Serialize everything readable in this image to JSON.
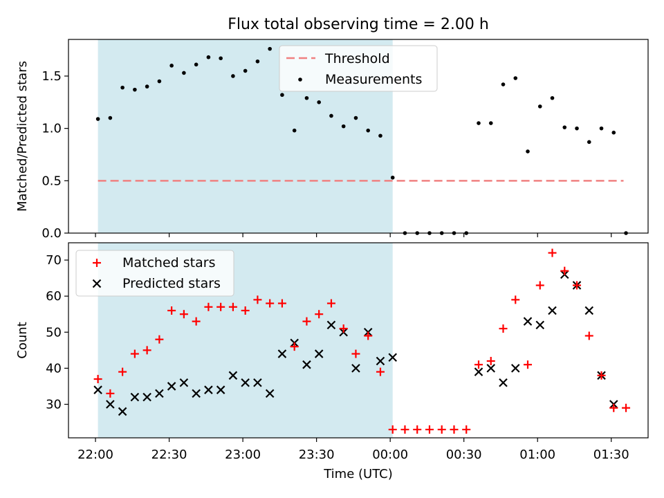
{
  "figure_title": "Flux total observing time = 2.00 h",
  "colors": {
    "shade": "#d3eaf0",
    "threshold": "#f08080",
    "matched": "#ff0000",
    "predicted": "#000000",
    "measurement": "#000000"
  },
  "chart_data": [
    {
      "type": "scatter",
      "title": "Flux total observing time = 2.00 h",
      "xlabel": "",
      "ylabel": "Matched/Predicted stars",
      "xlim": [
        "21:49",
        "01:45"
      ],
      "ylim": [
        0,
        1.85
      ],
      "yticks": [
        0.0,
        0.5,
        1.0,
        1.5
      ],
      "ytick_labels": [
        "0.0",
        "0.5",
        "1.0",
        "1.5"
      ],
      "shaded_region": {
        "x0": "22:01",
        "x1": "00:01"
      },
      "legend_position": "upper center",
      "threshold": {
        "name": "Threshold",
        "value": 0.5,
        "x0": "22:01",
        "x1": "01:35",
        "style": "dashed"
      },
      "series": [
        {
          "name": "Measurements",
          "x": [
            "22:01",
            "22:06",
            "22:11",
            "22:16",
            "22:21",
            "22:26",
            "22:31",
            "22:36",
            "22:41",
            "22:46",
            "22:51",
            "22:56",
            "23:01",
            "23:06",
            "23:11",
            "23:16",
            "23:21",
            "23:26",
            "23:31",
            "23:36",
            "23:41",
            "23:46",
            "23:51",
            "23:56",
            "00:01",
            "00:06",
            "00:11",
            "00:16",
            "00:21",
            "00:26",
            "00:31",
            "00:36",
            "00:41",
            "00:46",
            "00:51",
            "00:56",
            "01:01",
            "01:06",
            "01:11",
            "01:16",
            "01:21",
            "01:26",
            "01:31",
            "01:36"
          ],
          "y": [
            1.09,
            1.1,
            1.39,
            1.37,
            1.4,
            1.45,
            1.6,
            1.53,
            1.61,
            1.68,
            1.67,
            1.5,
            1.55,
            1.64,
            1.76,
            1.32,
            0.98,
            1.29,
            1.25,
            1.12,
            1.02,
            1.1,
            0.98,
            0.93,
            0.53,
            0.0,
            0.0,
            0.0,
            0.0,
            0.0,
            0.0,
            1.05,
            1.05,
            1.42,
            1.48,
            0.78,
            1.21,
            1.29,
            1.01,
            1.0,
            0.87,
            1.0,
            0.96,
            0.0
          ]
        }
      ]
    },
    {
      "type": "scatter",
      "title": "",
      "xlabel": "Time (UTC)",
      "ylabel": "Count",
      "xlim": [
        "21:49",
        "01:45"
      ],
      "ylim": [
        20.7,
        74.8
      ],
      "yticks": [
        30,
        40,
        50,
        60,
        70
      ],
      "ytick_labels": [
        "30",
        "40",
        "50",
        "60",
        "70"
      ],
      "xticks": [
        "22:00",
        "22:30",
        "23:00",
        "23:30",
        "00:00",
        "00:30",
        "01:00",
        "01:30"
      ],
      "shaded_region": {
        "x0": "22:01",
        "x1": "00:01"
      },
      "legend_position": "upper left",
      "x": [
        "22:01",
        "22:06",
        "22:11",
        "22:16",
        "22:21",
        "22:26",
        "22:31",
        "22:36",
        "22:41",
        "22:46",
        "22:51",
        "22:56",
        "23:01",
        "23:06",
        "23:11",
        "23:16",
        "23:21",
        "23:26",
        "23:31",
        "23:36",
        "23:41",
        "23:46",
        "23:51",
        "23:56",
        "00:01",
        "00:06",
        "00:11",
        "00:16",
        "00:21",
        "00:26",
        "00:31",
        "00:36",
        "00:41",
        "00:46",
        "00:51",
        "00:56",
        "01:01",
        "01:06",
        "01:11",
        "01:16",
        "01:21",
        "01:26",
        "01:31",
        "01:36"
      ],
      "series": [
        {
          "name": "Matched stars",
          "marker": "+",
          "y": [
            37,
            33,
            39,
            44,
            45,
            48,
            56,
            55,
            53,
            57,
            57,
            57,
            56,
            59,
            58,
            58,
            46,
            53,
            55,
            58,
            51,
            44,
            49,
            39,
            23,
            23,
            23,
            23,
            23,
            23,
            23,
            41,
            42,
            51,
            59,
            41,
            63,
            72,
            67,
            63,
            49,
            38,
            29,
            29
          ]
        },
        {
          "name": "Predicted stars",
          "marker": "x",
          "y": [
            34,
            30,
            28,
            32,
            32,
            33,
            35,
            36,
            33,
            34,
            34,
            38,
            36,
            36,
            33,
            44,
            47,
            41,
            44,
            52,
            50,
            40,
            50,
            42,
            43,
            null,
            null,
            null,
            null,
            null,
            null,
            39,
            40,
            36,
            40,
            53,
            52,
            56,
            66,
            63,
            56,
            38,
            30,
            null
          ]
        }
      ]
    }
  ]
}
